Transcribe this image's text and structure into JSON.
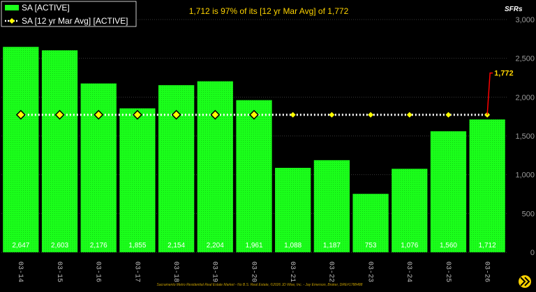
{
  "chart_data": {
    "type": "bar",
    "categories": [
      "03-14",
      "03-15",
      "03-16",
      "03-17",
      "03-18",
      "03-19",
      "03-20",
      "03-21",
      "03-22",
      "03-23",
      "03-24",
      "03-25",
      "03-26"
    ],
    "series": [
      {
        "name": "SA [ACTIVE]",
        "type": "bar",
        "color": "#1bff1b",
        "values": [
          2647,
          2603,
          2176,
          1855,
          2154,
          2204,
          1961,
          1088,
          1187,
          753,
          1076,
          1560,
          1712
        ]
      },
      {
        "name": "SA [12 yr Mar Avg] [ACTIVE]",
        "type": "line",
        "style": "dotted",
        "color": "#ffffff",
        "marker_color": "#ffff00",
        "values": [
          1772,
          1772,
          1772,
          1772,
          1772,
          1772,
          1772,
          1772,
          1772,
          1772,
          1772,
          1772,
          1772
        ]
      }
    ],
    "data_labels": [
      "2,647",
      "2,603",
      "2,176",
      "1,855",
      "2,154",
      "2,204",
      "1,961",
      "1,088",
      "1,187",
      "753",
      "1,076",
      "1,560",
      "1,712"
    ],
    "title": "1,712 is 97% of its [12 yr Mar Avg] of 1,772",
    "units_label": "SFRs",
    "ylim": [
      0,
      3000
    ],
    "y_ticks": [
      0,
      500,
      1000,
      1500,
      2000,
      2500,
      3000
    ],
    "y_tick_labels": [
      "0",
      "500",
      "1,000",
      "1,500",
      "2,000",
      "2,500",
      "3,000"
    ],
    "y_axis_side": "right",
    "grid": true,
    "legend_position": "top-left",
    "annotation": {
      "text": "1,772",
      "category": "03-26",
      "color": "#ff0000"
    },
    "footer": "Sacramento Metro Residential Real Estate Market - No B.S. Real Estate, ©2026 JD Wise, Inc. - Jay Emerson, Broker, DRE#1788488",
    "colors": {
      "background": "#000000",
      "bar": "#1bff1b",
      "grid": "#3a3a3a",
      "headline": "#ffd400",
      "marker": "#ffff00"
    }
  }
}
